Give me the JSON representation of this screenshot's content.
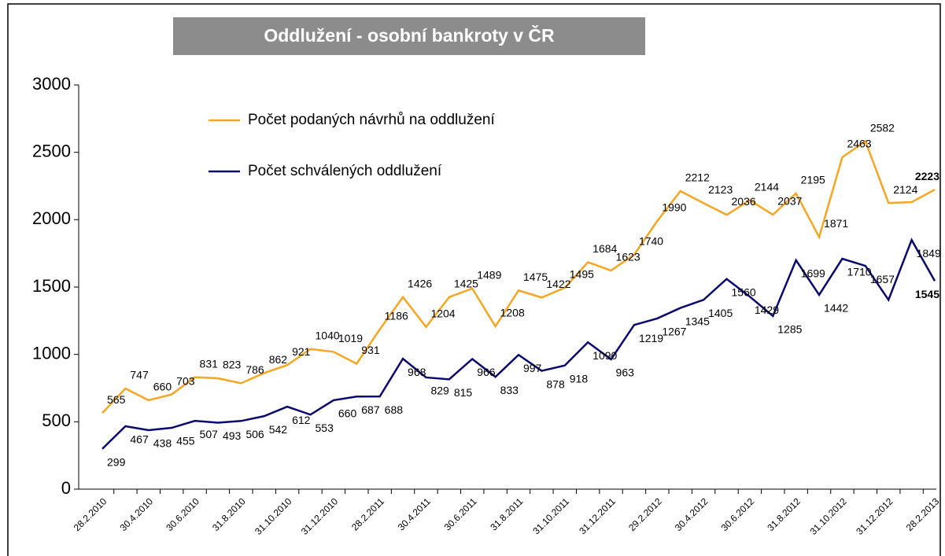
{
  "chart_data": {
    "type": "line",
    "title": "Oddlužení - osobní bankroty v ČR",
    "categories": [
      "28.2.2010",
      null,
      "30.4.2010",
      null,
      "30.6.2010",
      null,
      "31.8.2010",
      null,
      "31.10.2010",
      null,
      "31.12.2010",
      null,
      "28.2.2011",
      null,
      "30.4.2011",
      null,
      "30.6.2011",
      null,
      "31.8.2011",
      null,
      "31.10.2011",
      null,
      "31.12.2011",
      null,
      "29.2.2012",
      null,
      "30.4.2012",
      null,
      "30.6.2012",
      null,
      "31.8.2012",
      null,
      "31.10.2012",
      null,
      "31.12.2012",
      null,
      "28.2.2013"
    ],
    "series": [
      {
        "name": "Počet podaných návrhů na oddlužení",
        "color": "#f5a623",
        "values": [
          565,
          747,
          660,
          703,
          831,
          823,
          786,
          862,
          921,
          1040,
          1019,
          931,
          1186,
          1426,
          1204,
          1425,
          1489,
          1208,
          1475,
          1422,
          1495,
          1684,
          1623,
          1740,
          1990,
          2212,
          2123,
          2036,
          2144,
          2037,
          2195,
          1871,
          2463,
          2582,
          2124,
          2130,
          2223
        ],
        "value_labels": [
          "565",
          "747",
          "660",
          "703",
          "831",
          "823",
          "786",
          "862",
          "921",
          "1040",
          "1019",
          "931",
          "1186",
          "1426",
          "1204",
          "1425",
          "1489",
          "1208",
          "1475",
          "1422",
          "1495",
          "1684",
          "1623",
          "1740",
          "1990",
          "2212",
          "2123",
          "2036",
          "2144",
          "2037",
          "2195",
          "1871",
          "2463",
          "2582",
          "2124",
          null,
          "2223"
        ]
      },
      {
        "name": "Počet schválených oddlužení",
        "color": "#0a0a6e",
        "values": [
          299,
          467,
          438,
          455,
          507,
          493,
          506,
          542,
          612,
          553,
          660,
          687,
          688,
          968,
          829,
          815,
          966,
          833,
          997,
          878,
          918,
          1090,
          963,
          1219,
          1267,
          1345,
          1405,
          1560,
          1429,
          1285,
          1699,
          1442,
          1710,
          1657,
          1405,
          1849,
          1545
        ],
        "value_labels": [
          "299",
          "467",
          "438",
          "455",
          "507",
          "493",
          "506",
          "542",
          "612",
          "553",
          "660",
          "687",
          "688",
          "968",
          "829",
          "815",
          "966",
          "833",
          "997",
          "878",
          "918",
          "1090",
          "963",
          "1219",
          "1267",
          "1345",
          "1405",
          "1560",
          "1429",
          "1285",
          "1699",
          "1442",
          "1710",
          "1657",
          null,
          "1849",
          "1545"
        ]
      }
    ],
    "ylim": [
      0,
      3000
    ],
    "yticks": [
      0,
      500,
      1000,
      1500,
      2000,
      2500,
      3000
    ],
    "grid": false
  }
}
